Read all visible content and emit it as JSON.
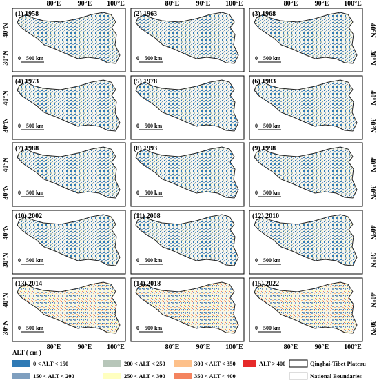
{
  "panels": [
    {
      "label": "(1) 1958"
    },
    {
      "label": "(2) 1963"
    },
    {
      "label": "(3) 1968"
    },
    {
      "label": "(4) 1973"
    },
    {
      "label": "(5) 1978"
    },
    {
      "label": "(6) 1983"
    },
    {
      "label": "(7) 1988"
    },
    {
      "label": "(8) 1993"
    },
    {
      "label": "(9) 1998"
    },
    {
      "label": "(10) 2002"
    },
    {
      "label": "(11) 2008"
    },
    {
      "label": "(12) 2010"
    },
    {
      "label": "(13) 2014"
    },
    {
      "label": "(14) 2018"
    },
    {
      "label": "(15) 2022"
    }
  ],
  "longitudes": [
    "80°E",
    "90°E",
    "100°E"
  ],
  "latitudes": [
    "40°N",
    "30°N"
  ],
  "scale_bar": {
    "zero": "0",
    "distance": "500 km"
  },
  "legend": {
    "title": "ALT ( cm )",
    "items": [
      {
        "label": "0 < ALT < 150",
        "color": "#2f7ab5"
      },
      {
        "label": "150 < ALT < 200",
        "color": "#7f9fbf"
      },
      {
        "label": "200 < ALT < 250",
        "color": "#b7c6b9"
      },
      {
        "label": "250 < ALT < 300",
        "color": "#ffffc0"
      },
      {
        "label": "300 < ALT < 350",
        "color": "#fdc08a"
      },
      {
        "label": "350 < ALT < 400",
        "color": "#f4845f"
      },
      {
        "label": "ALT > 400",
        "color": "#e62a2a"
      },
      {
        "label": "Qinghai-Tibet Plateau",
        "color": "#ffffff"
      },
      {
        "label": "National Boundaries",
        "color": "#ffffff"
      }
    ]
  }
}
